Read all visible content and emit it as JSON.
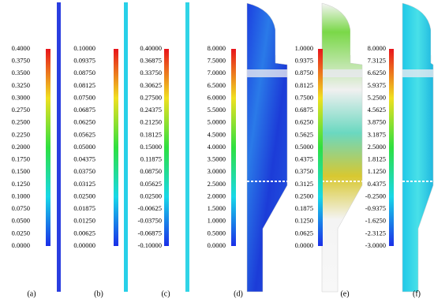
{
  "panels": [
    {
      "label": "(a)",
      "ticks": [
        "0.4000",
        "0.3750",
        "0.3500",
        "0.3250",
        "0.3000",
        "0.2750",
        "0.2500",
        "0.2250",
        "0.2000",
        "0.1750",
        "0.1500",
        "0.1250",
        "0.1000",
        "0.0750",
        "0.0500",
        "0.0250",
        "0.0000"
      ]
    },
    {
      "label": "(b)",
      "ticks": [
        "0.10000",
        "0.09375",
        "0.08750",
        "0.08125",
        "0.07500",
        "0.06875",
        "0.06250",
        "0.05625",
        "0.05000",
        "0.04375",
        "0.03750",
        "0.03125",
        "0.02500",
        "0.01875",
        "0.01250",
        "0.00625",
        "0.00000"
      ]
    },
    {
      "label": "(c)",
      "ticks": [
        "0.40000",
        "0.36875",
        "0.33750",
        "0.30625",
        "0.27500",
        "0.24375",
        "0.21250",
        "0.18125",
        "0.15000",
        "0.11875",
        "0.08750",
        "0.05625",
        "0.02500",
        "-0.00625",
        "-0.03750",
        "-0.06875",
        "-0.10000"
      ]
    },
    {
      "label": "(d)",
      "ticks": [
        "8.0000",
        "7.5000",
        "7.0000",
        "6.5000",
        "6.0000",
        "5.5000",
        "5.0000",
        "4.5000",
        "4.0000",
        "3.5000",
        "3.0000",
        "2.5000",
        "2.0000",
        "1.5000",
        "1.0000",
        "0.5000",
        "0.0000"
      ]
    },
    {
      "label": "(e)",
      "ticks": [
        "1.0000",
        "0.9375",
        "0.8750",
        "0.8125",
        "0.7500",
        "0.6875",
        "0.6250",
        "0.5625",
        "0.5000",
        "0.4375",
        "0.3750",
        "0.3125",
        "0.2500",
        "0.1875",
        "0.1250",
        "0.0625",
        "0.0000"
      ]
    },
    {
      "label": "(f)",
      "ticks": [
        "8.0000",
        "7.3125",
        "6.6250",
        "5.9375",
        "5.2500",
        "4.5625",
        "3.8750",
        "3.1875",
        "2.5000",
        "1.8125",
        "1.1250",
        "0.4375",
        "-0.2500",
        "-0.9375",
        "-1.6250",
        "-2.3125",
        "-3.0000"
      ]
    }
  ]
}
